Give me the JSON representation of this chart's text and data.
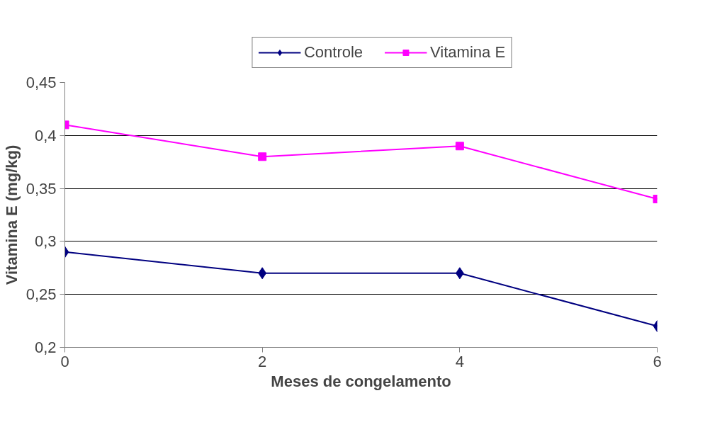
{
  "chart_data": {
    "type": "line",
    "xlabel": "Meses de congelamento",
    "ylabel": "Vitamina E (mg/kg)",
    "x": [
      0,
      2,
      4,
      6
    ],
    "xlim": [
      0,
      6
    ],
    "xticks": [
      0,
      2,
      4,
      6
    ],
    "ylim": [
      0.2,
      0.45
    ],
    "yticks": [
      {
        "value": 0.2,
        "label": "0,2"
      },
      {
        "value": 0.25,
        "label": "0,25"
      },
      {
        "value": 0.3,
        "label": "0,3"
      },
      {
        "value": 0.35,
        "label": "0,35"
      },
      {
        "value": 0.4,
        "label": "0,4"
      },
      {
        "value": 0.45,
        "label": "0,45"
      }
    ],
    "grid": "y",
    "legend": "top",
    "line_style": "solid",
    "series": [
      {
        "name": "Controle",
        "color": "#000080",
        "marker": "diamond",
        "values": [
          0.29,
          0.27,
          0.27,
          0.22
        ]
      },
      {
        "name": "Vitamina E",
        "color": "#ff00ff",
        "marker": "square",
        "values": [
          0.41,
          0.38,
          0.39,
          0.34
        ]
      }
    ]
  }
}
